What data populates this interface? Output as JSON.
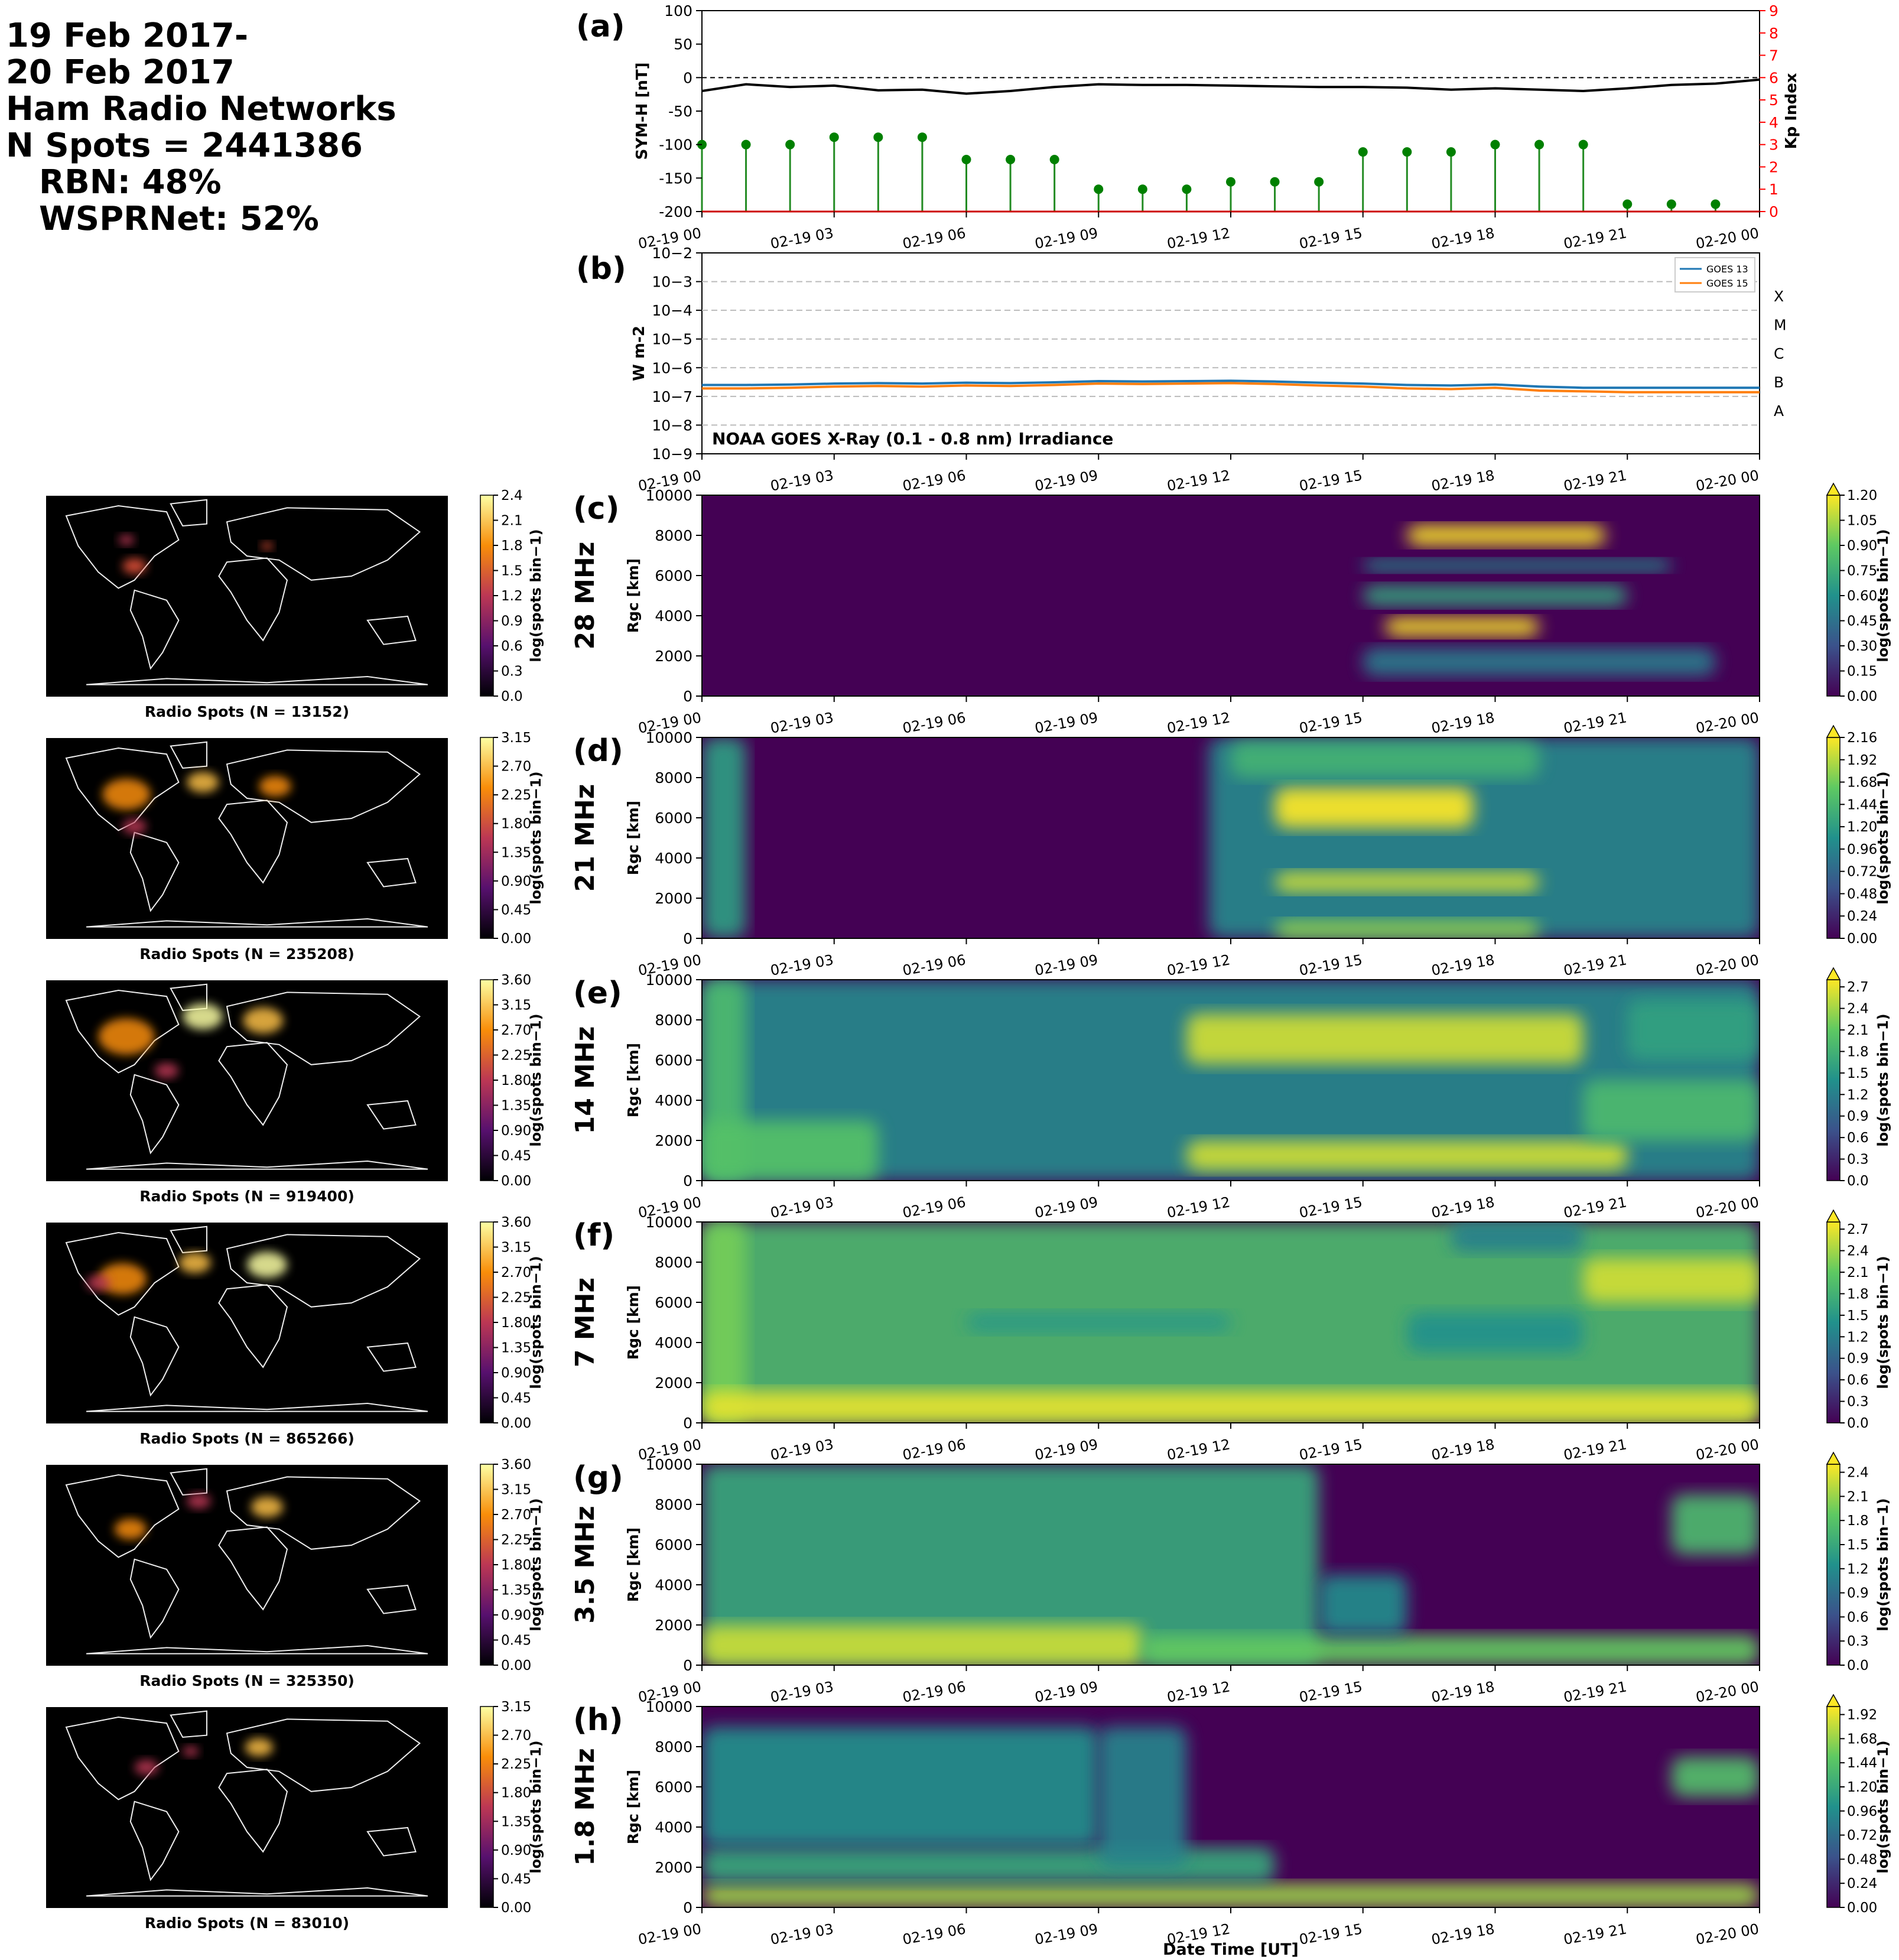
{
  "header": {
    "line1": "19 Feb 2017-",
    "line2": "20 Feb 2017",
    "line3": "Ham Radio Networks",
    "line4": "N Spots = 2441386",
    "line5": "RBN: 48%",
    "line6": "WSPRNet: 52%"
  },
  "time_ticks": [
    "02-19 00",
    "02-19 03",
    "02-19 06",
    "02-19 09",
    "02-19 12",
    "02-19 15",
    "02-19 18",
    "02-19 21",
    "02-20 00"
  ],
  "xlabel": "Date Time [UT]",
  "chart_data": [
    {
      "panel": "(a)",
      "type": "line",
      "ylabel": "SYM-H [nT]",
      "ylim": [
        -200,
        100
      ],
      "yticks": [
        100,
        50,
        0,
        -50,
        -100,
        -150,
        -200
      ],
      "y2label": "Kp Index",
      "y2lim": [
        0,
        9
      ],
      "y2ticks": [
        0,
        1,
        2,
        3,
        4,
        5,
        6,
        7,
        8,
        9
      ],
      "symh_hours": [
        0,
        1,
        2,
        3,
        4,
        5,
        6,
        7,
        8,
        9,
        10,
        11,
        12,
        13,
        14,
        15,
        16,
        17,
        18,
        19,
        20,
        21,
        22,
        23,
        24
      ],
      "symh_values": [
        -20,
        -10,
        -14,
        -12,
        -19,
        -18,
        -24,
        -20,
        -14,
        -10,
        -11,
        -11,
        -12,
        -13,
        -14,
        -14,
        -15,
        -18,
        -16,
        -18,
        -20,
        -16,
        -11,
        -9,
        -3
      ],
      "kp_hours": [
        0,
        1,
        2,
        3,
        4,
        5,
        6,
        7,
        8,
        9,
        10,
        11,
        12,
        13,
        14,
        15,
        16,
        17,
        18,
        19,
        20,
        21,
        22,
        23
      ],
      "kp_values": [
        3,
        3,
        3,
        3.33,
        3.33,
        3.33,
        2.33,
        2.33,
        2.33,
        1,
        1,
        1,
        1.33,
        1.33,
        1.33,
        2.67,
        2.67,
        2.67,
        3,
        3,
        3,
        0.33,
        0.33,
        0.33
      ]
    },
    {
      "panel": "(b)",
      "type": "line",
      "ylabel": "W m-2",
      "ylim": [
        1e-09,
        0.01
      ],
      "scale": "log",
      "yticks": [
        "10−9",
        "10−8",
        "10−7",
        "10−6",
        "10−5",
        "10−4",
        "10−3",
        "10−2"
      ],
      "flare_classes": [
        "A",
        "B",
        "C",
        "M",
        "X"
      ],
      "annotation": "NOAA GOES X-Ray (0.1 - 0.8 nm) Irradiance",
      "series": [
        {
          "name": "GOES 13",
          "color": "#1f77b4",
          "hours": [
            0,
            1,
            2,
            3,
            4,
            5,
            6,
            7,
            8,
            9,
            10,
            11,
            12,
            13,
            14,
            15,
            16,
            17,
            18,
            19,
            20,
            21,
            22,
            23,
            24
          ],
          "values": [
            2.5e-07,
            2.5e-07,
            2.6e-07,
            2.8e-07,
            2.9e-07,
            2.8e-07,
            3e-07,
            2.9e-07,
            3.1e-07,
            3.4e-07,
            3.3e-07,
            3.4e-07,
            3.5e-07,
            3.3e-07,
            3e-07,
            2.8e-07,
            2.5e-07,
            2.4e-07,
            2.6e-07,
            2.2e-07,
            2e-07,
            2e-07,
            2e-07,
            2e-07,
            2e-07
          ]
        },
        {
          "name": "GOES 15",
          "color": "#ff7f0e",
          "hours": [
            0,
            1,
            2,
            3,
            4,
            5,
            6,
            7,
            8,
            9,
            10,
            11,
            12,
            13,
            14,
            15,
            16,
            17,
            18,
            19,
            20,
            21,
            22,
            23,
            24
          ],
          "values": [
            1.9e-07,
            1.9e-07,
            2e-07,
            2.2e-07,
            2.3e-07,
            2.2e-07,
            2.4e-07,
            2.3e-07,
            2.5e-07,
            2.8e-07,
            2.7e-07,
            2.8e-07,
            2.9e-07,
            2.7e-07,
            2.4e-07,
            2.2e-07,
            1.9e-07,
            1.8e-07,
            2e-07,
            1.6e-07,
            1.5e-07,
            1.4e-07,
            1.4e-07,
            1.4e-07,
            1.4e-07
          ]
        }
      ]
    }
  ],
  "rows": [
    {
      "panel": "(c)",
      "band": "28 MHz",
      "spots": "Radio Spots (N = 13152)",
      "cb_max": 1.2,
      "cb_ticks": [
        "0.00",
        "0.15",
        "0.30",
        "0.45",
        "0.60",
        "0.75",
        "0.90",
        "1.05",
        "1.20"
      ],
      "map_ticks": [
        "0.0",
        "0.3",
        "0.6",
        "0.9",
        "1.2",
        "1.5",
        "1.8",
        "2.1",
        "2.4"
      ],
      "ylabel": "Rgc [km]",
      "ylim": [
        0,
        10000
      ],
      "yticks": [
        "0",
        "2000",
        "4000",
        "6000",
        "8000",
        "10000"
      ],
      "cblabel": "log(spots bin−1)",
      "blobs": [
        [
          16,
          20.5,
          7500,
          8500,
          1.2
        ],
        [
          15.5,
          19,
          3000,
          3900,
          1.2
        ],
        [
          15,
          21,
          4500,
          5500,
          0.7
        ],
        [
          15,
          22,
          6200,
          6800,
          0.6
        ],
        [
          15,
          23,
          1000,
          2400,
          0.5
        ]
      ]
    },
    {
      "panel": "(d)",
      "band": "21 MHz",
      "spots": "Radio Spots (N = 235208)",
      "cb_max": 2.16,
      "cb_ticks": [
        "0.00",
        "0.24",
        "0.48",
        "0.72",
        "0.96",
        "1.20",
        "1.44",
        "1.68",
        "1.92",
        "2.16"
      ],
      "map_ticks": [
        "0.00",
        "0.45",
        "0.90",
        "1.35",
        "1.80",
        "2.25",
        "2.70",
        "3.15"
      ],
      "ylabel": "Rgc [km]",
      "ylim": [
        0,
        10000
      ],
      "yticks": [
        "0",
        "2000",
        "4000",
        "6000",
        "8000",
        "10000"
      ],
      "cblabel": "log(spots bin−1)",
      "blobs": [
        [
          0,
          1,
          0,
          10000,
          1.2
        ],
        [
          11.5,
          24,
          0,
          10000,
          1.0
        ],
        [
          13,
          17.5,
          5500,
          7500,
          2.2
        ],
        [
          13,
          19,
          2300,
          3300,
          2.0
        ],
        [
          13,
          19,
          0,
          900,
          1.8
        ],
        [
          12,
          19,
          8000,
          9800,
          1.4
        ]
      ]
    },
    {
      "panel": "(e)",
      "band": "14 MHz",
      "spots": "Radio Spots (N = 919400)",
      "cb_max": 2.8,
      "cb_ticks": [
        "0.0",
        "0.3",
        "0.6",
        "0.9",
        "1.2",
        "1.5",
        "1.8",
        "2.1",
        "2.4",
        "2.7"
      ],
      "map_ticks": [
        "0.00",
        "0.45",
        "0.90",
        "1.35",
        "1.80",
        "2.25",
        "2.70",
        "3.15",
        "3.60"
      ],
      "ylabel": "Rgc [km]",
      "ylim": [
        0,
        10000
      ],
      "yticks": [
        "0",
        "2000",
        "4000",
        "6000",
        "8000",
        "10000"
      ],
      "cblabel": "log(spots bin−1)",
      "blobs": [
        [
          0,
          24,
          0,
          10000,
          1.3
        ],
        [
          0,
          1,
          0,
          10000,
          1.9
        ],
        [
          11,
          20,
          5800,
          8300,
          2.6
        ],
        [
          11,
          21,
          500,
          2000,
          2.6
        ],
        [
          0,
          4,
          0,
          3000,
          2.0
        ],
        [
          20,
          24,
          2000,
          5000,
          1.9
        ],
        [
          21,
          24,
          6000,
          9000,
          1.6
        ]
      ]
    },
    {
      "panel": "(f)",
      "band": "7 MHz",
      "spots": "Radio Spots (N = 865266)",
      "cb_max": 2.8,
      "cb_ticks": [
        "0.0",
        "0.3",
        "0.6",
        "0.9",
        "1.2",
        "1.5",
        "1.8",
        "2.1",
        "2.4",
        "2.7"
      ],
      "map_ticks": [
        "0.00",
        "0.45",
        "0.90",
        "1.35",
        "1.80",
        "2.25",
        "2.70",
        "3.15",
        "3.60"
      ],
      "ylabel": "Rgc [km]",
      "ylim": [
        0,
        10000
      ],
      "yticks": [
        "0",
        "2000",
        "4000",
        "6000",
        "8000",
        "10000"
      ],
      "cblabel": "log(spots bin−1)",
      "blobs": [
        [
          0,
          24,
          0,
          10000,
          1.9
        ],
        [
          0,
          1,
          0,
          10000,
          2.2
        ],
        [
          0,
          24,
          0,
          1600,
          2.7
        ],
        [
          20,
          24,
          6000,
          8200,
          2.6
        ],
        [
          16,
          20,
          3500,
          5500,
          1.4
        ],
        [
          17,
          20,
          8500,
          10000,
          1.2
        ],
        [
          6,
          12,
          4500,
          5500,
          1.5
        ]
      ]
    },
    {
      "panel": "(g)",
      "band": "3.5 MHz",
      "spots": "Radio Spots (N = 325350)",
      "cb_max": 2.5,
      "cb_ticks": [
        "0.0",
        "0.3",
        "0.6",
        "0.9",
        "1.2",
        "1.5",
        "1.8",
        "2.1",
        "2.4"
      ],
      "map_ticks": [
        "0.00",
        "0.45",
        "0.90",
        "1.35",
        "1.80",
        "2.25",
        "2.70",
        "3.15",
        "3.60"
      ],
      "ylabel": "Rgc [km]",
      "ylim": [
        0,
        10000
      ],
      "yticks": [
        "0",
        "2000",
        "4000",
        "6000",
        "8000",
        "10000"
      ],
      "cblabel": "log(spots bin−1)",
      "blobs": [
        [
          0,
          14,
          0,
          10000,
          1.5
        ],
        [
          0,
          10,
          0,
          2000,
          2.3
        ],
        [
          10,
          24,
          0,
          1500,
          1.9
        ],
        [
          22,
          24,
          5500,
          8500,
          1.7
        ],
        [
          14,
          16,
          1500,
          4500,
          1.2
        ]
      ]
    },
    {
      "panel": "(h)",
      "band": "1.8 MHz",
      "spots": "Radio Spots (N = 83010)",
      "cb_max": 2.0,
      "cb_ticks": [
        "0.00",
        "0.24",
        "0.48",
        "0.72",
        "0.96",
        "1.20",
        "1.44",
        "1.68",
        "1.92"
      ],
      "map_ticks": [
        "0.00",
        "0.45",
        "0.90",
        "1.35",
        "1.80",
        "2.25",
        "2.70",
        "3.15"
      ],
      "ylabel": "Rgc [km]",
      "ylim": [
        0,
        10000
      ],
      "yticks": [
        "0",
        "2000",
        "4000",
        "6000",
        "8000",
        "10000"
      ],
      "cblabel": "log(spots bin−1)",
      "blobs": [
        [
          0,
          24,
          0,
          1200,
          1.7
        ],
        [
          0,
          13,
          1200,
          3000,
          1.2
        ],
        [
          0,
          9,
          3000,
          9000,
          1.0
        ],
        [
          9,
          11,
          2000,
          9000,
          0.9
        ],
        [
          22,
          24,
          5500,
          7500,
          1.4
        ]
      ]
    }
  ],
  "colors": {
    "symh_line": "#000000",
    "kp_stem": "#228b22",
    "kp_axis": "#ff0000"
  }
}
